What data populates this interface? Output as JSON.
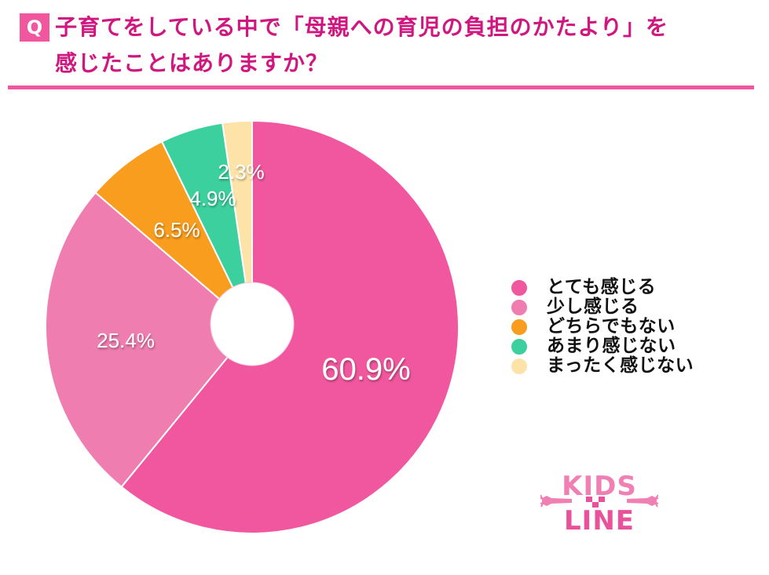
{
  "header": {
    "badge": "Q",
    "title_line1": "子育てをしている中で「母親への育児の負担のかたより」を",
    "title_line2": "感じたことはありますか？",
    "accent_color": "#d0167f",
    "rule_color": "#f0579e"
  },
  "chart_data": {
    "type": "pie",
    "title": "子育てをしている中で「母親への育児の負担のかたより」を感じたことはありますか？",
    "donut_hole": true,
    "categories": [
      "とても感じる",
      "少し感じる",
      "どちらでもない",
      "あまり感じない",
      "まったく感じない"
    ],
    "values": [
      60.9,
      25.4,
      6.5,
      4.9,
      2.3
    ],
    "labels": [
      "60.9%",
      "25.4%",
      "6.5%",
      "4.9%",
      "2.3%"
    ],
    "colors": [
      "#f0579e",
      "#ef7db0",
      "#f99d1e",
      "#3dd09f",
      "#fde3a7"
    ],
    "unit": "%",
    "legend_position": "right"
  },
  "legend": {
    "items": [
      {
        "label": "とても感じる",
        "color": "#f0579e"
      },
      {
        "label": "少し感じる",
        "color": "#ef7db0"
      },
      {
        "label": "どちらでもない",
        "color": "#f99d1e"
      },
      {
        "label": "あまり感じない",
        "color": "#3dd09f"
      },
      {
        "label": "まったく感じない",
        "color": "#fde3a7"
      }
    ]
  },
  "logo": {
    "line1": "KIDS",
    "line2": "LINE"
  }
}
